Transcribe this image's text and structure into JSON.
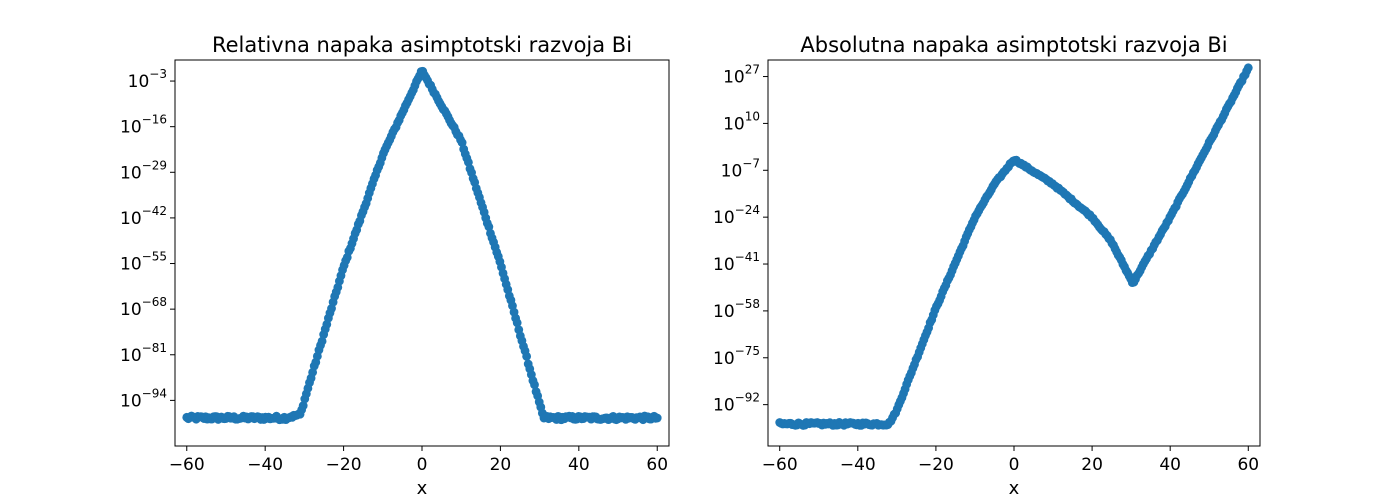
{
  "chart_data": [
    {
      "type": "scatter",
      "title": "Relativna napaka asimptotski razvoja Bi",
      "xlabel": "x",
      "ylabel": "",
      "yscale": "log",
      "xlim": [
        -63,
        63
      ],
      "ylog_range": [
        -107,
        3
      ],
      "xticks": [
        "−60",
        "−40",
        "−20",
        "0",
        "20",
        "40",
        "60"
      ],
      "xtick_values": [
        -60,
        -40,
        -20,
        0,
        20,
        40,
        60
      ],
      "yticks": [
        {
          "base": "10",
          "exp": "−3",
          "value": -3
        },
        {
          "base": "10",
          "exp": "−16",
          "value": -16
        },
        {
          "base": "10",
          "exp": "−29",
          "value": -29
        },
        {
          "base": "10",
          "exp": "−42",
          "value": -42
        },
        {
          "base": "10",
          "exp": "−55",
          "value": -55
        },
        {
          "base": "10",
          "exp": "−68",
          "value": -68
        },
        {
          "base": "10",
          "exp": "−81",
          "value": -81
        },
        {
          "base": "10",
          "exp": "−94",
          "value": -94
        }
      ],
      "marker_color": "#1f77b4",
      "x_range": [
        -60,
        60
      ],
      "curve_log10": [
        {
          "x": -60,
          "y": -99
        },
        {
          "x": -35,
          "y": -99
        },
        {
          "x": -31,
          "y": -98
        },
        {
          "x": -30,
          "y": -94
        },
        {
          "x": -20,
          "y": -56
        },
        {
          "x": -10,
          "y": -24
        },
        {
          "x": -5,
          "y": -12
        },
        {
          "x": 0,
          "y": 0
        },
        {
          "x": 5,
          "y": -10
        },
        {
          "x": 10,
          "y": -20
        },
        {
          "x": 20,
          "y": -55
        },
        {
          "x": 30,
          "y": -95
        },
        {
          "x": 31,
          "y": -99
        },
        {
          "x": 60,
          "y": -99
        }
      ]
    },
    {
      "type": "scatter",
      "title": "Absolutna napaka asimptotski razvoja Bi",
      "xlabel": "x",
      "ylabel": "",
      "yscale": "log",
      "xlim": [
        -63,
        63
      ],
      "ylog_range": [
        -107,
        33
      ],
      "xticks": [
        "−60",
        "−40",
        "−20",
        "0",
        "20",
        "40",
        "60"
      ],
      "xtick_values": [
        -60,
        -40,
        -20,
        0,
        20,
        40,
        60
      ],
      "yticks": [
        {
          "base": "10",
          "exp": "27",
          "value": 27
        },
        {
          "base": "10",
          "exp": "10",
          "value": 10
        },
        {
          "base": "10",
          "exp": "−7",
          "value": -7
        },
        {
          "base": "10",
          "exp": "−24",
          "value": -24
        },
        {
          "base": "10",
          "exp": "−41",
          "value": -41
        },
        {
          "base": "10",
          "exp": "−58",
          "value": -58
        },
        {
          "base": "10",
          "exp": "−75",
          "value": -75
        },
        {
          "base": "10",
          "exp": "−92",
          "value": -92
        }
      ],
      "marker_color": "#1f77b4",
      "x_range": [
        -60,
        60
      ],
      "curve_log10": [
        {
          "x": -60,
          "y": -99
        },
        {
          "x": -32,
          "y": -99
        },
        {
          "x": -30,
          "y": -94
        },
        {
          "x": -20,
          "y": -57
        },
        {
          "x": -10,
          "y": -24
        },
        {
          "x": -5,
          "y": -12
        },
        {
          "x": 0,
          "y": -3
        },
        {
          "x": 10,
          "y": -12
        },
        {
          "x": 20,
          "y": -24
        },
        {
          "x": 25,
          "y": -33
        },
        {
          "x": 29,
          "y": -44
        },
        {
          "x": 30.5,
          "y": -48
        },
        {
          "x": 32,
          "y": -44
        },
        {
          "x": 40,
          "y": -24
        },
        {
          "x": 50,
          "y": 3
        },
        {
          "x": 60,
          "y": 30
        }
      ]
    }
  ]
}
